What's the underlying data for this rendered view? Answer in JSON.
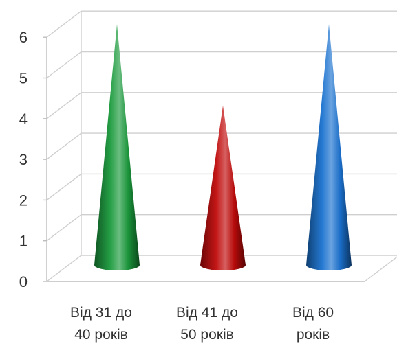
{
  "chart_data": {
    "type": "bar",
    "style": "3d-cone",
    "categories": [
      [
        "Від 31 до",
        "40 років"
      ],
      [
        "Від 41 до",
        "50 років"
      ],
      [
        "Від 60",
        "років"
      ]
    ],
    "values": [
      6,
      4,
      6
    ],
    "colors": [
      "#1a9a3c",
      "#c00a0a",
      "#1a72d0"
    ],
    "ylim": [
      0,
      6
    ],
    "yticks": [
      0,
      1,
      2,
      3,
      4,
      5,
      6
    ],
    "grid": true,
    "title": "",
    "xlabel": "",
    "ylabel": "",
    "legend": "none"
  }
}
